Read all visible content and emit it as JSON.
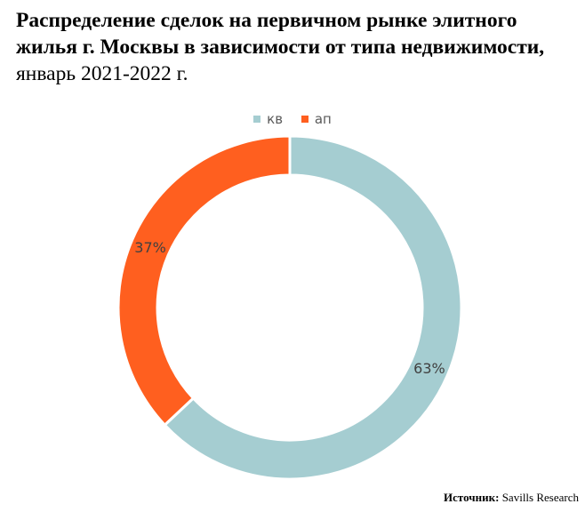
{
  "title": {
    "bold": "Распределение сделок на первичном рынке элитного жилья г. Москвы в зависимости от типа недвижимости,",
    "normal": " январь 2021-2022 г."
  },
  "chart_data": {
    "type": "pie",
    "donut": true,
    "categories": [
      "кв",
      "ап"
    ],
    "values": [
      63,
      37
    ],
    "labels": [
      "63%",
      "37%"
    ],
    "colors": [
      "#A5CDD1",
      "#FF5F1F"
    ],
    "legend": "top"
  },
  "source": {
    "label": "Источник:",
    "text": " Savills Research"
  }
}
